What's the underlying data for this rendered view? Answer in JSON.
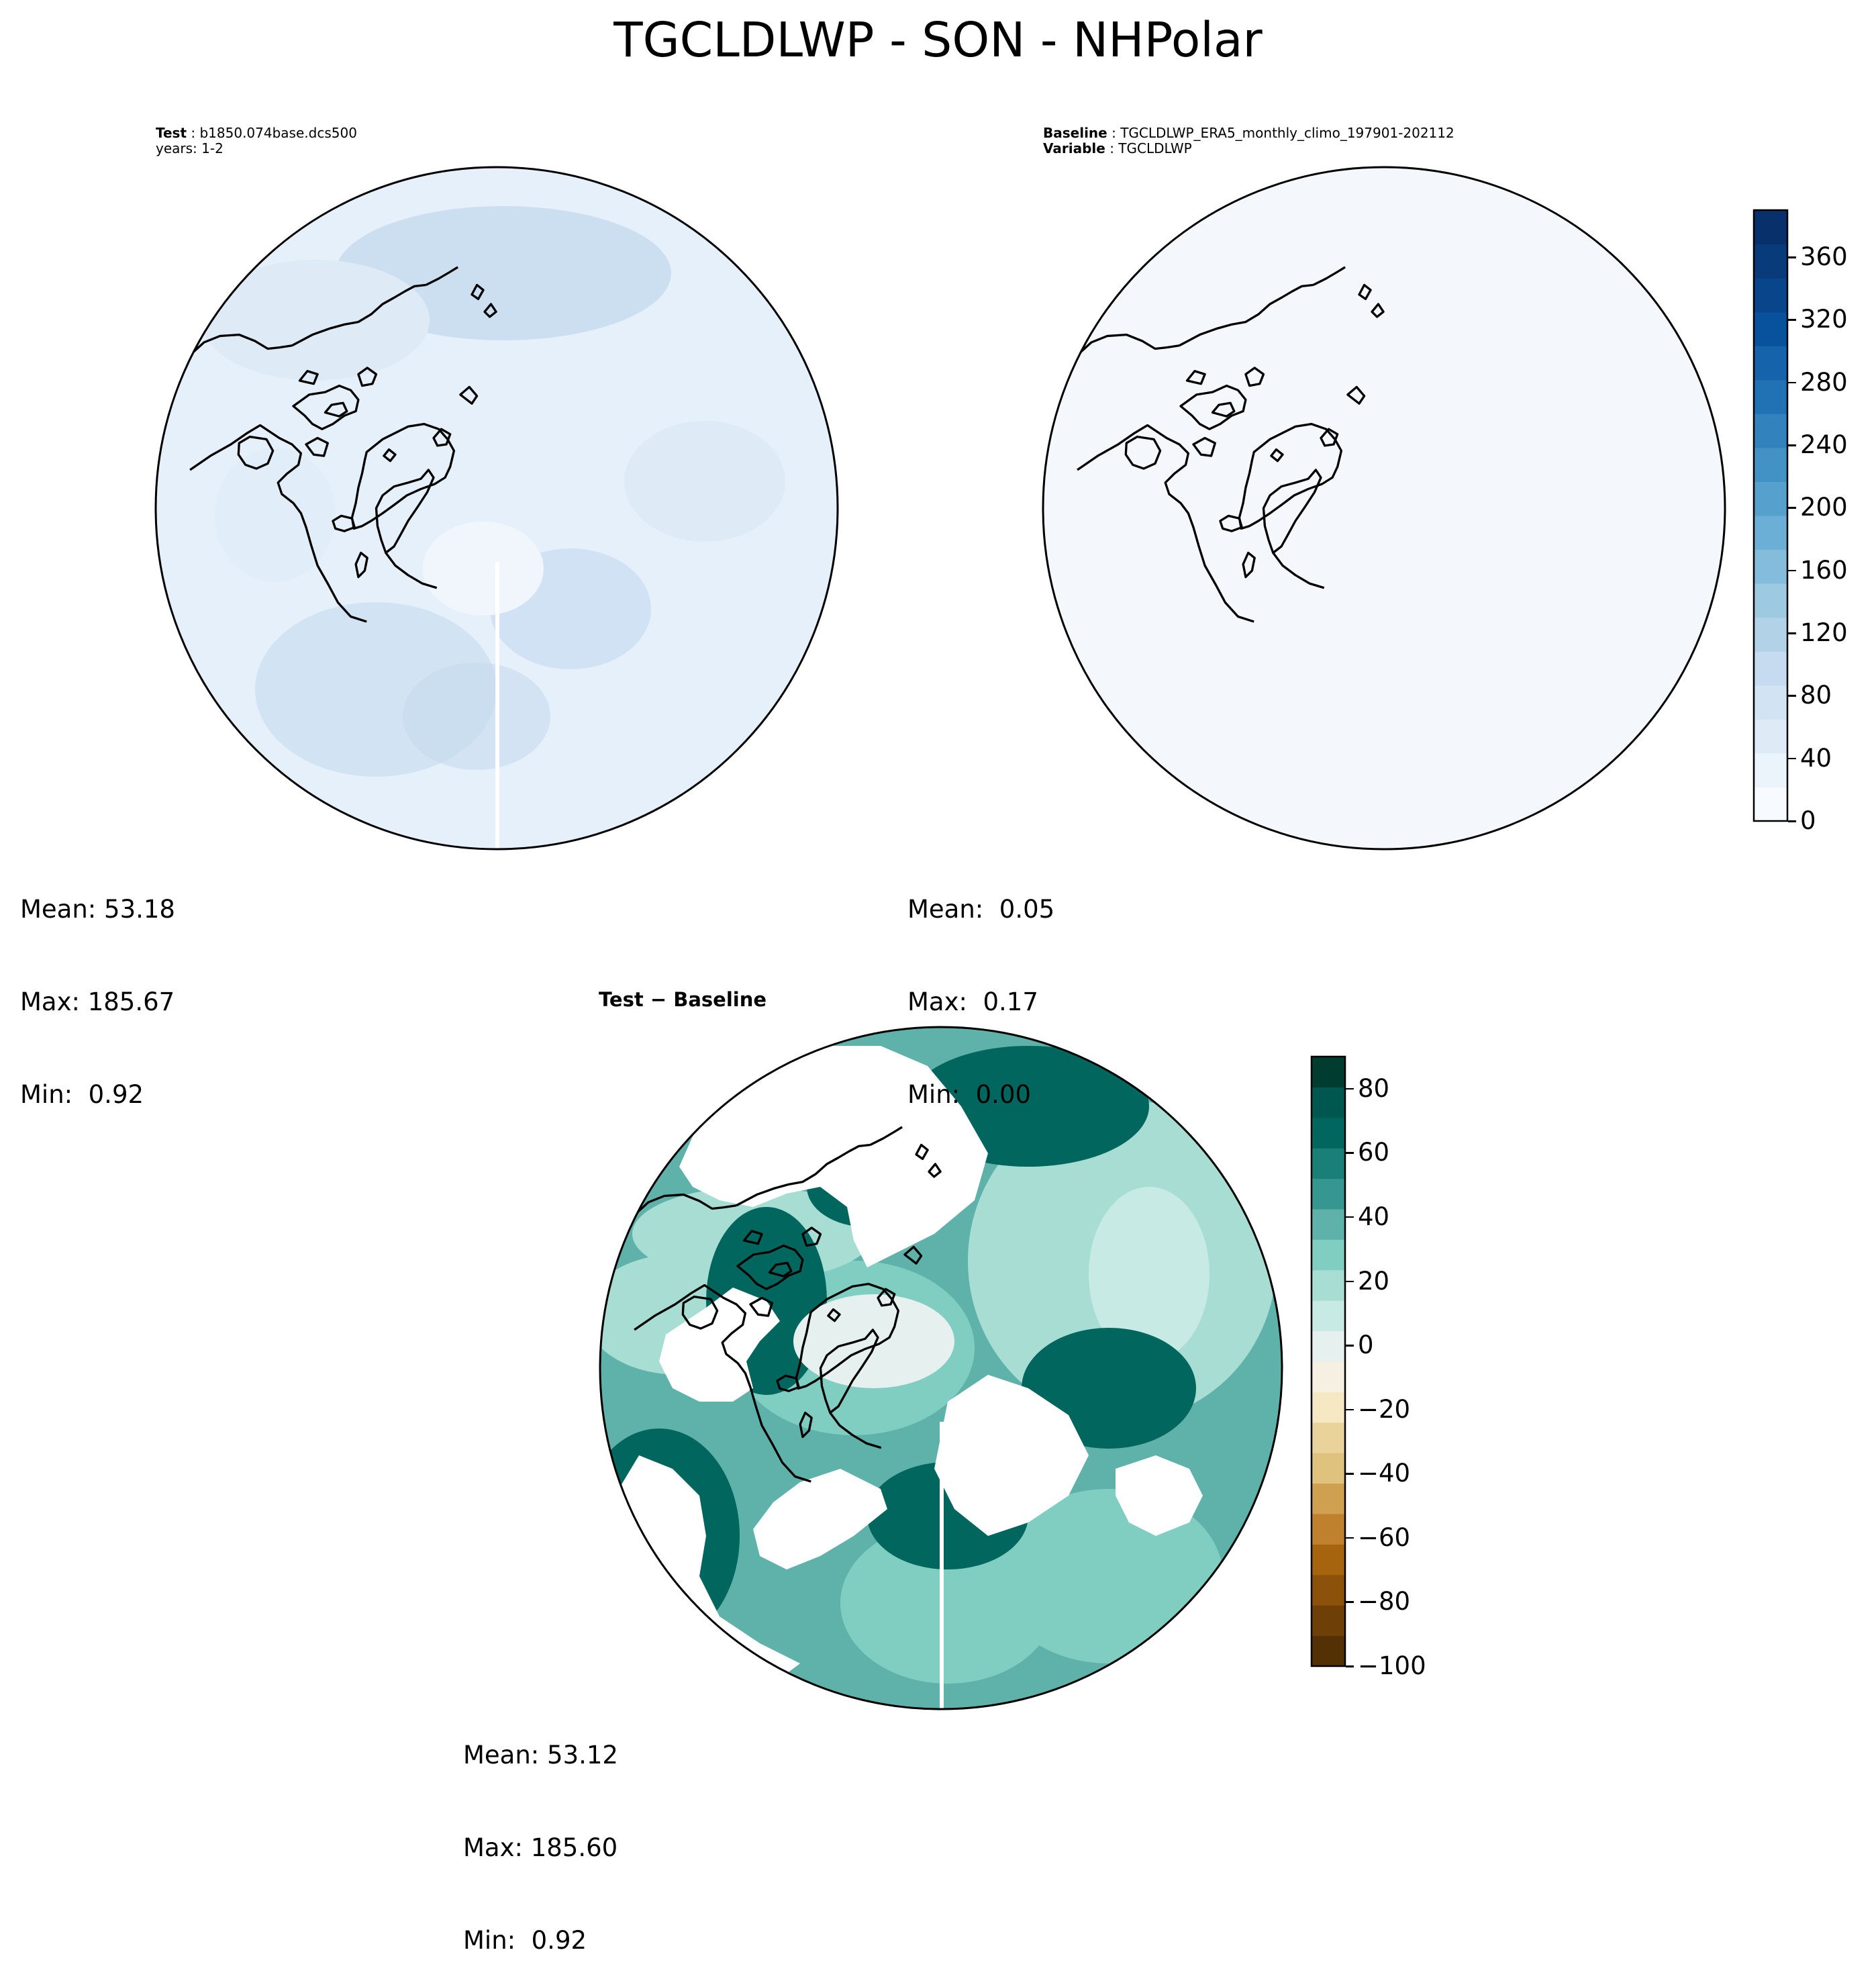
{
  "figure": {
    "title": "TGCLDLWP - SON - NHPolar"
  },
  "panels": {
    "test": {
      "label_key": "Test",
      "label_value": "b1850.074base.dcs500",
      "line2": "years: 1-2",
      "stats": {
        "mean": "Mean: 53.18",
        "max": "Max: 185.67",
        "min": "Min:  0.92"
      }
    },
    "baseline": {
      "label_key": "Baseline",
      "label_value": "TGCLDLWP_ERA5_monthly_climo_197901-202112",
      "var_key": "Variable",
      "var_value": "TGCLDLWP",
      "stats": {
        "mean": "Mean:  0.05",
        "max": "Max:  0.17",
        "min": "Min:  0.00"
      }
    },
    "diff": {
      "title": "Test − Baseline",
      "stats": {
        "mean": "Mean: 53.12",
        "max": "Max: 185.60",
        "min": "Min:  0.92"
      }
    }
  },
  "colorbars": {
    "blues": {
      "cmap": "Blues",
      "range": [
        0,
        390
      ],
      "ticks": [
        "0",
        "40",
        "80",
        "120",
        "160",
        "200",
        "240",
        "280",
        "320",
        "360"
      ],
      "colors": [
        "#f7fbff",
        "#ebf3fb",
        "#deebf7",
        "#d2e3f3",
        "#c6dbef",
        "#b1d2e7",
        "#9ecae1",
        "#84bcdb",
        "#6baed6",
        "#56a0ce",
        "#4292c6",
        "#3282be",
        "#2171b5",
        "#1563aa",
        "#08519c",
        "#08458a",
        "#083b7a",
        "#08306b"
      ]
    },
    "brbg": {
      "cmap": "BrBG",
      "range": [
        -100,
        90
      ],
      "ticks": [
        "−100",
        "−80",
        "−60",
        "−40",
        "−20",
        "0",
        "20",
        "40",
        "60",
        "80"
      ],
      "colors": [
        "#543005",
        "#6e3f07",
        "#8c510a",
        "#a6640f",
        "#bf812d",
        "#cfa050",
        "#dfc27d",
        "#ead39a",
        "#f6e8c3",
        "#f5f0e2",
        "#e6f0ee",
        "#c7eae5",
        "#a8ddd4",
        "#80cdc1",
        "#5fb2aa",
        "#35978f",
        "#1a7f77",
        "#01665e",
        "#00574f",
        "#003c30"
      ]
    }
  }
}
